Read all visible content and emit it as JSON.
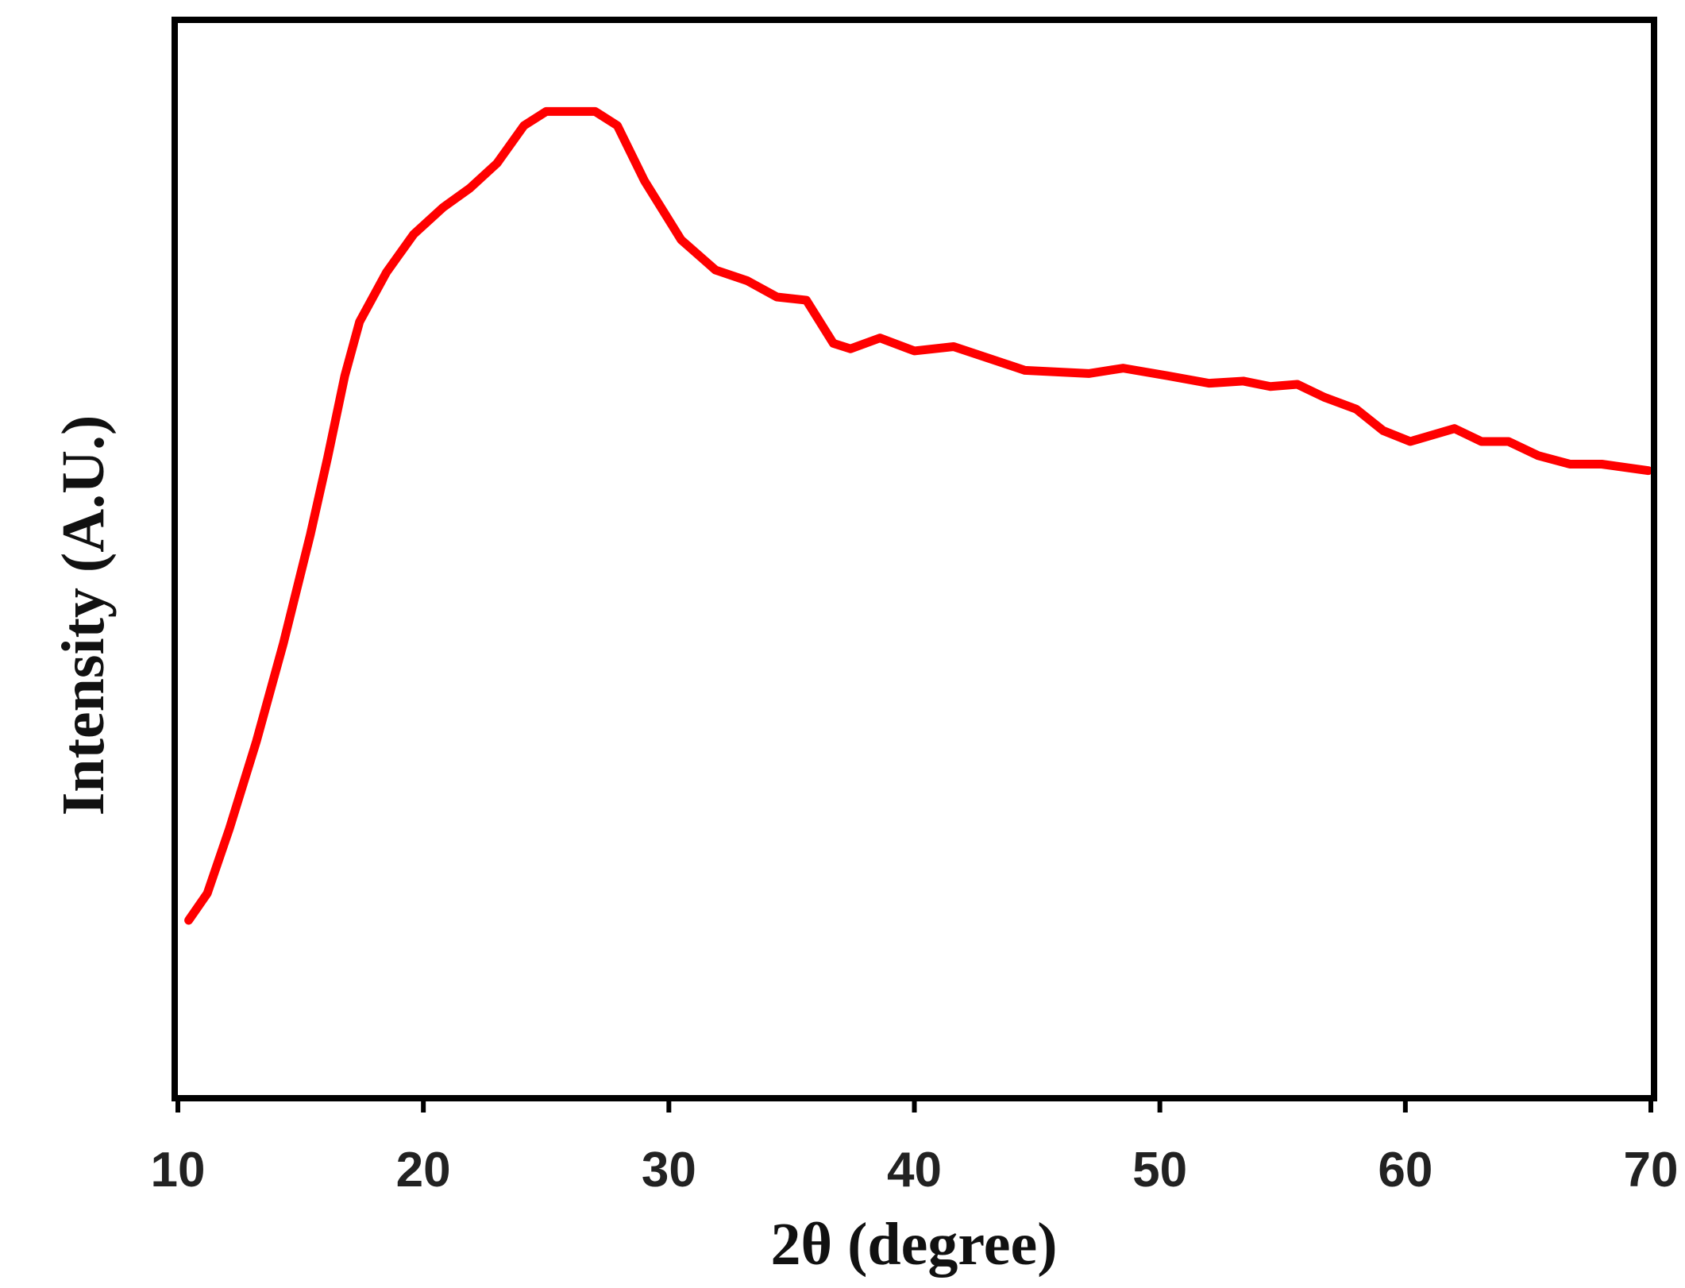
{
  "chart_data": {
    "type": "line",
    "x_label": "2θ (degree)",
    "y_label": "Intensity (A.U.)",
    "series": [
      {
        "name": "Intensity",
        "color": "#ff0000",
        "x": [
          10.44,
          11.2,
          12.1,
          13.2,
          14.3,
          15.4,
          16.1,
          16.8,
          17.4,
          18.5,
          19.6,
          20.8,
          21.9,
          23.0,
          24.1,
          25.0,
          27.0,
          27.9,
          29.0,
          30.5,
          31.9,
          33.2,
          34.4,
          35.6,
          36.7,
          37.4,
          38.6,
          40.0,
          41.6,
          44.5,
          47.1,
          48.5,
          50.3,
          52.0,
          53.4,
          54.5,
          55.6,
          56.7,
          58.0,
          59.1,
          60.2,
          62.0,
          63.1,
          64.2,
          65.4,
          66.7,
          68.0,
          69.9
        ],
        "values": [
          16.5,
          19,
          25,
          33.1,
          42.2,
          52.3,
          59.4,
          67,
          72,
          76.6,
          80.1,
          82.6,
          84.4,
          86.7,
          90.2,
          91.5,
          91.5,
          90.2,
          85.1,
          79.6,
          76.8,
          75.8,
          74.3,
          74,
          70,
          69.5,
          70.5,
          69.3,
          69.7,
          67.5,
          67.2,
          67.7,
          67,
          66.3,
          66.5,
          66,
          66.2,
          65,
          63.9,
          61.9,
          60.9,
          62.1,
          60.9,
          60.9,
          59.6,
          58.8,
          58.8,
          58.2
        ]
      }
    ],
    "xlim": [
      10,
      70
    ],
    "xticks": [
      10,
      20,
      30,
      40,
      50,
      60,
      70
    ],
    "ylim": [
      0,
      100
    ]
  }
}
